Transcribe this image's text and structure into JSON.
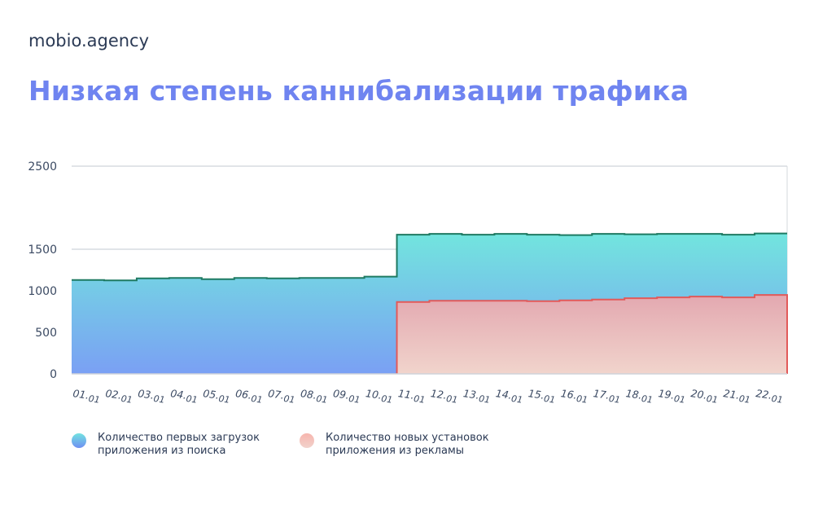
{
  "brand": "mobio.agency",
  "title": "Низкая степень каннибализации трафика",
  "chart_data": {
    "type": "area",
    "ylim": [
      0,
      2500
    ],
    "yticks": [
      0,
      500,
      1000,
      1500,
      2500
    ],
    "grid": true,
    "step": true,
    "categories": [
      "01.01",
      "02.01",
      "03.01",
      "04.01",
      "05.01",
      "06.01",
      "07.01",
      "08.01",
      "09.01",
      "10.01",
      "11.01",
      "12.01",
      "13.01",
      "14.01",
      "15.01",
      "16.01",
      "17.01",
      "18.01",
      "19.01",
      "20.01",
      "21.01",
      "22.01"
    ],
    "series": [
      {
        "name": "Количество первых загрузок приложения из поиска",
        "color": "#1e7a62",
        "values": [
          1130,
          1125,
          1150,
          1155,
          1140,
          1155,
          1150,
          1155,
          1155,
          1170,
          1675,
          1685,
          1675,
          1685,
          1675,
          1670,
          1685,
          1680,
          1685,
          1685,
          1675,
          1690
        ]
      },
      {
        "name": "Количество новых установок приложения из рекламы",
        "color": "#e25a5a",
        "values": [
          null,
          null,
          null,
          null,
          null,
          null,
          null,
          null,
          null,
          null,
          865,
          880,
          880,
          880,
          875,
          885,
          895,
          910,
          920,
          930,
          920,
          950
        ]
      }
    ]
  },
  "legend": [
    {
      "text": "Количество первых загрузок приложения из поиска"
    },
    {
      "text": "Количество новых установок приложения из рекламы"
    }
  ]
}
